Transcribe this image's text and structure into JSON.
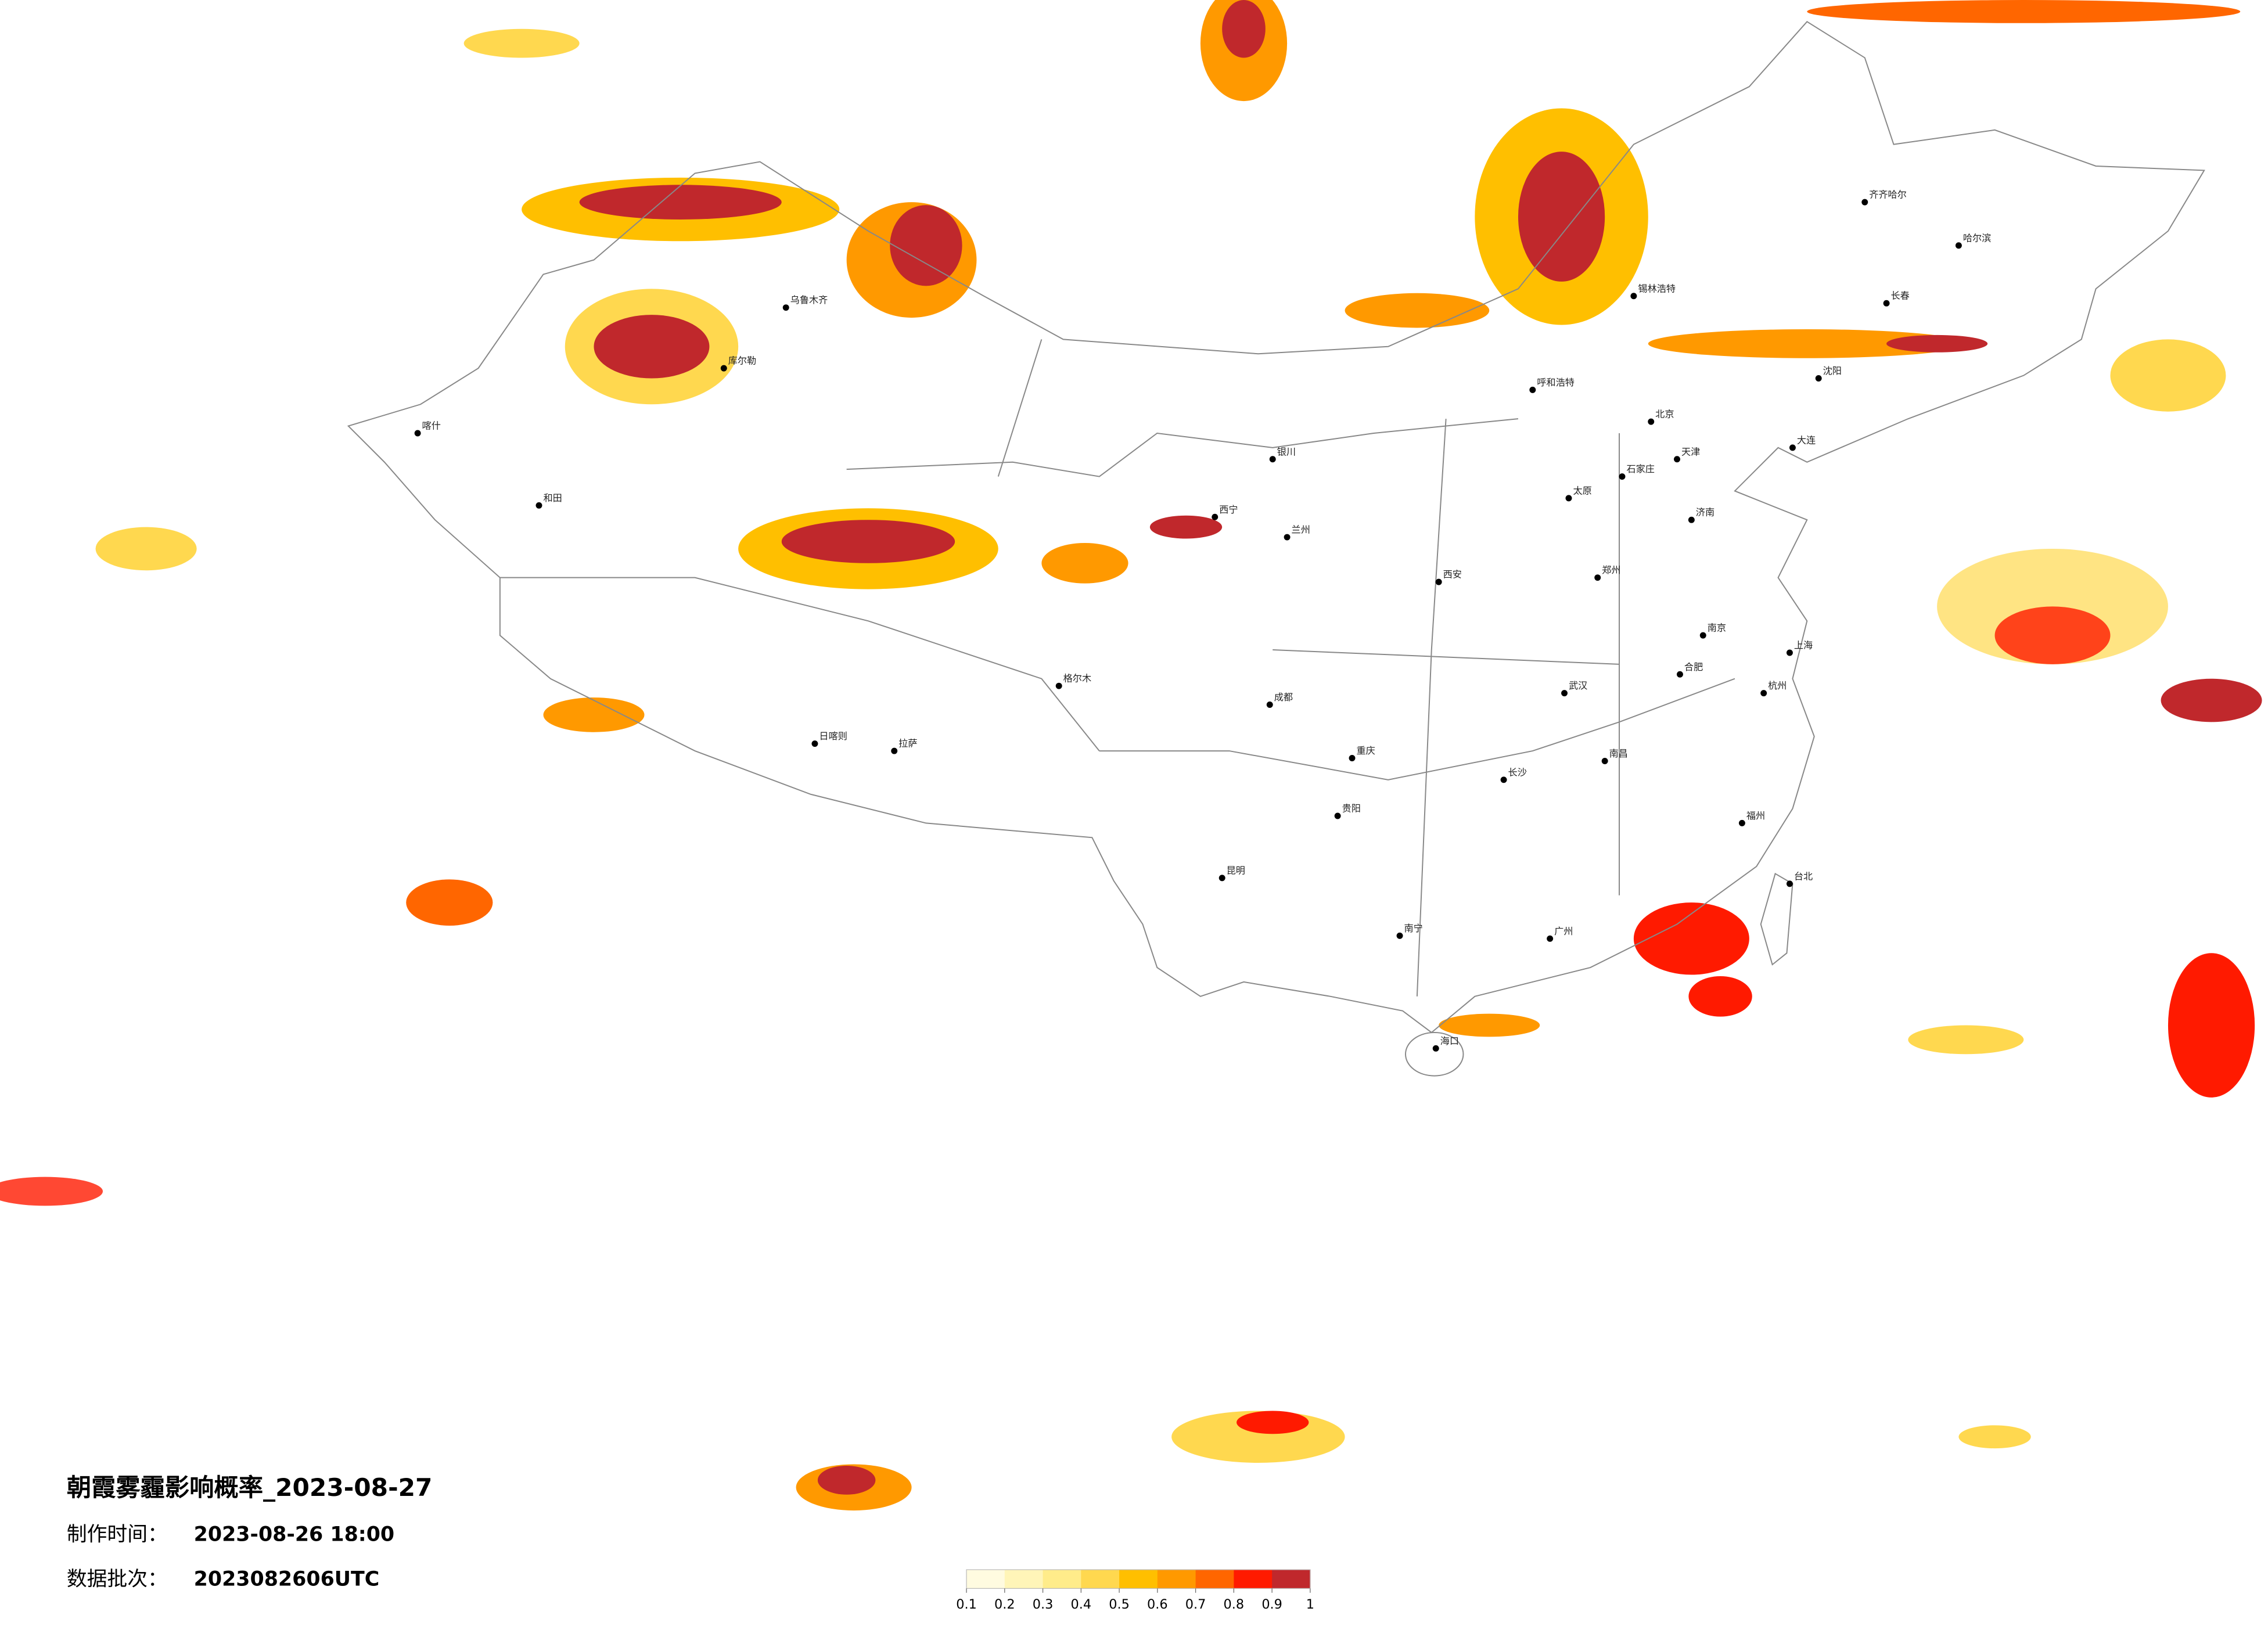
{
  "header": {
    "title": "朝霞雾霾影响概率_2023-08-27",
    "made_label": "制作时间：",
    "made_time": "2023-08-26 18:00",
    "batch_label": "数据批次：",
    "batch": "2023082606UTC"
  },
  "legend": {
    "ticks": [
      0.1,
      0.2,
      0.3,
      0.4,
      0.5,
      0.6,
      0.7,
      0.8,
      0.9,
      1
    ],
    "colors": [
      "#fffbe0",
      "#fff5b8",
      "#ffec8a",
      "#ffd84f",
      "#ffbf00",
      "#ff9900",
      "#ff6600",
      "#ff1a00",
      "#c0282c"
    ]
  },
  "cities": [
    "北京",
    "天津",
    "石家庄",
    "太原",
    "呼和浩特",
    "沈阳",
    "长春",
    "哈尔滨",
    "济南",
    "郑州",
    "西安",
    "兰州",
    "西宁",
    "银川",
    "乌鲁木齐",
    "拉萨",
    "成都",
    "重庆",
    "贵阳",
    "昆明",
    "南宁",
    "广州",
    "福州",
    "杭州",
    "上海",
    "南京",
    "合肥",
    "武汉",
    "长沙",
    "南昌",
    "海口",
    "台北",
    "和田",
    "喀什",
    "库尔勒",
    "日喀则",
    "齐齐哈尔",
    "锡林浩特",
    "格尔木",
    "大连"
  ]
}
